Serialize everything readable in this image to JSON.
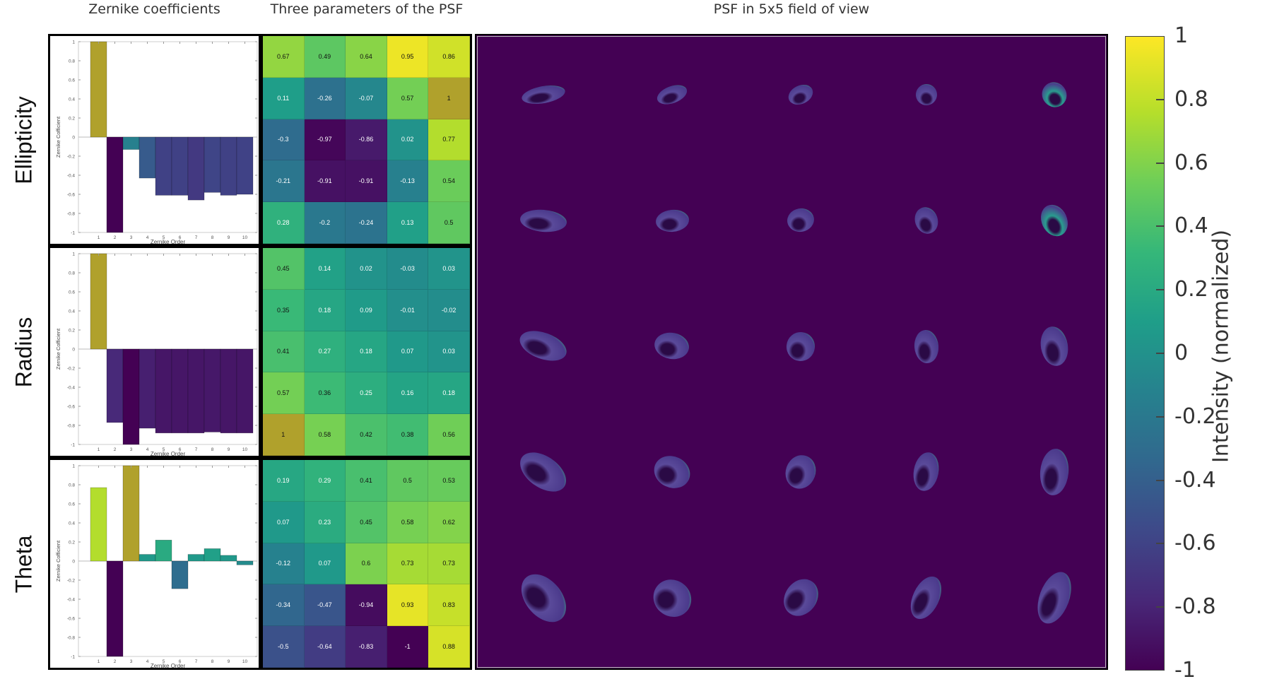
{
  "headings": {
    "zernike": "Zernike coefficients",
    "params": "Three parameters of the PSF",
    "psf": "PSF in 5x5 field of view"
  },
  "rows": [
    {
      "label": "Ellipticity"
    },
    {
      "label": "Radius"
    },
    {
      "label": "Theta"
    }
  ],
  "bar_axes": {
    "xlabel": "Zernike Order",
    "ylabel": "Zernike Cofficient",
    "yticks": [
      "1",
      "0.8",
      "0.6",
      "0.4",
      "0.2",
      "0",
      "-0.2",
      "-0.4",
      "-0.6",
      "-0.8",
      "-1"
    ],
    "xticks": [
      "1",
      "2",
      "3",
      "4",
      "5",
      "6",
      "7",
      "8",
      "9",
      "10"
    ]
  },
  "colorbar": {
    "label": "Intensity (normalized)",
    "ticks": [
      "1",
      "0.8",
      "0.6",
      "0.4",
      "0.2",
      "0",
      "-0.2",
      "-0.4",
      "-0.6",
      "-0.8",
      "-1"
    ]
  },
  "chart_data": [
    {
      "type": "bar",
      "title": "Ellipticity - Zernike coefficients",
      "xlabel": "Zernike Order",
      "ylabel": "Zernike Cofficient",
      "ylim": [
        -1,
        1
      ],
      "categories": [
        1,
        2,
        3,
        4,
        5,
        6,
        7,
        8,
        9,
        10
      ],
      "values": [
        1,
        -1,
        -0.13,
        -0.43,
        -0.61,
        -0.61,
        -0.66,
        -0.58,
        -0.61,
        -0.6
      ]
    },
    {
      "type": "bar",
      "title": "Radius - Zernike coefficients",
      "xlabel": "Zernike Order",
      "ylabel": "Zernike Cofficient",
      "ylim": [
        -1,
        1
      ],
      "categories": [
        1,
        2,
        3,
        4,
        5,
        6,
        7,
        8,
        9,
        10
      ],
      "values": [
        1,
        -0.77,
        -1,
        -0.83,
        -0.88,
        -0.88,
        -0.88,
        -0.87,
        -0.88,
        -0.88
      ]
    },
    {
      "type": "bar",
      "title": "Theta - Zernike coefficients",
      "xlabel": "Zernike Order",
      "ylabel": "Zernike Cofficient",
      "ylim": [
        -1,
        1
      ],
      "categories": [
        1,
        2,
        3,
        4,
        5,
        6,
        7,
        8,
        9,
        10
      ],
      "values": [
        0.77,
        -1,
        1,
        0.07,
        0.22,
        -0.29,
        0.07,
        0.13,
        0.06,
        -0.04
      ]
    },
    {
      "type": "heatmap",
      "title": "Ellipticity - Three parameters of the PSF",
      "colormap": "viridis",
      "range": [
        -1,
        1
      ],
      "values": [
        [
          0.67,
          0.49,
          0.64,
          0.95,
          0.86
        ],
        [
          0.11,
          -0.26,
          -0.07,
          0.57,
          1
        ],
        [
          -0.3,
          -0.97,
          -0.86,
          0.02,
          0.77
        ],
        [
          -0.21,
          -0.91,
          -0.91,
          -0.13,
          0.54
        ],
        [
          0.28,
          -0.2,
          -0.24,
          0.13,
          0.5
        ]
      ]
    },
    {
      "type": "heatmap",
      "title": "Radius - Three parameters of the PSF",
      "colormap": "viridis",
      "range": [
        -1,
        1
      ],
      "values": [
        [
          0.45,
          0.14,
          0.02,
          -0.03,
          0.03
        ],
        [
          0.35,
          0.18,
          0.09,
          -0.01,
          -0.02
        ],
        [
          0.41,
          0.27,
          0.18,
          0.07,
          0.03
        ],
        [
          0.57,
          0.36,
          0.25,
          0.16,
          0.18
        ],
        [
          1,
          0.58,
          0.42,
          0.38,
          0.56
        ]
      ]
    },
    {
      "type": "heatmap",
      "title": "Theta - Three parameters of the PSF",
      "colormap": "viridis",
      "range": [
        -1,
        1
      ],
      "values": [
        [
          0.19,
          0.29,
          0.41,
          0.5,
          0.53
        ],
        [
          0.07,
          0.23,
          0.45,
          0.58,
          0.62
        ],
        [
          -0.12,
          0.07,
          0.6,
          0.73,
          0.73
        ],
        [
          -0.34,
          -0.47,
          -0.94,
          0.93,
          0.83
        ],
        [
          -0.5,
          -0.64,
          -0.83,
          -1,
          0.88
        ]
      ]
    },
    {
      "type": "heatmap",
      "title": "PSF in 5x5 field of view",
      "grid": [
        5,
        5
      ],
      "colorbar_label": "Intensity (normalized)",
      "colorbar_range": [
        -1,
        1
      ]
    }
  ],
  "colors": {
    "max_highlight": "#b0a12c",
    "background_psf": "#440154"
  }
}
